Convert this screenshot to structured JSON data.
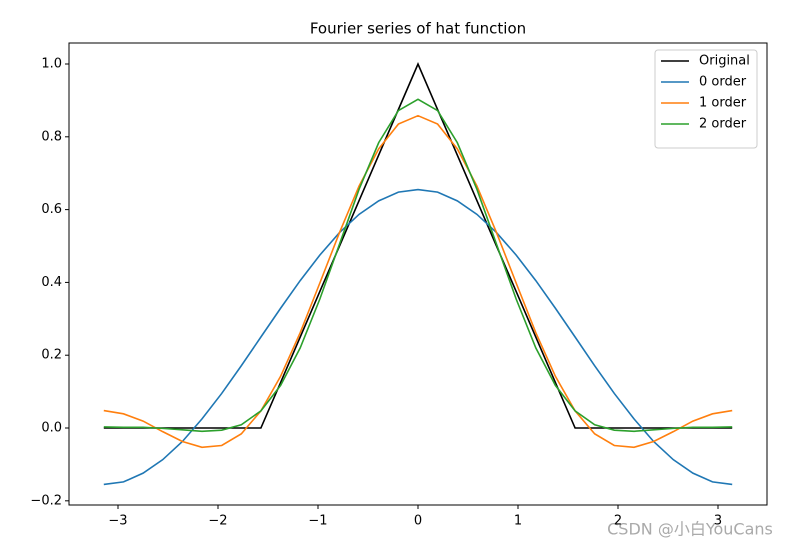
{
  "chart_data": {
    "type": "line",
    "title": "Fourier series of hat function",
    "x": [
      -3.142,
      -2.945,
      -2.749,
      -2.553,
      -2.356,
      -2.16,
      -1.963,
      -1.767,
      -1.571,
      -1.374,
      -1.178,
      -0.982,
      -0.785,
      -0.589,
      -0.393,
      -0.196,
      0,
      0.196,
      0.393,
      0.589,
      0.785,
      0.982,
      1.178,
      1.374,
      1.571,
      1.767,
      1.963,
      2.16,
      2.356,
      2.553,
      2.749,
      2.945,
      3.142
    ],
    "series": [
      {
        "name": "Original",
        "color": "#000000",
        "values": [
          0,
          0,
          0,
          0,
          0,
          0,
          0,
          0,
          0,
          0.125,
          0.25,
          0.375,
          0.5,
          0.625,
          0.75,
          0.875,
          1,
          0.875,
          0.75,
          0.625,
          0.5,
          0.375,
          0.25,
          0.125,
          0,
          0,
          0,
          0,
          0,
          0,
          0,
          0,
          0
        ]
      },
      {
        "name": "0 order",
        "color": "#1f77b4",
        "values": [
          -0.155,
          -0.148,
          -0.124,
          -0.087,
          -0.037,
          0.025,
          0.095,
          0.171,
          0.25,
          0.329,
          0.405,
          0.475,
          0.537,
          0.587,
          0.624,
          0.648,
          0.655,
          0.648,
          0.624,
          0.587,
          0.537,
          0.475,
          0.405,
          0.329,
          0.25,
          0.171,
          0.095,
          0.025,
          -0.037,
          -0.087,
          -0.124,
          -0.148,
          -0.155
        ]
      },
      {
        "name": "1 order",
        "color": "#ff7f0e",
        "values": [
          0.048,
          0.039,
          0.019,
          -0.01,
          -0.037,
          -0.053,
          -0.048,
          -0.016,
          0.047,
          0.142,
          0.262,
          0.398,
          0.537,
          0.665,
          0.767,
          0.835,
          0.858,
          0.835,
          0.767,
          0.665,
          0.537,
          0.398,
          0.262,
          0.142,
          0.047,
          -0.016,
          -0.048,
          -0.053,
          -0.037,
          -0.01,
          0.019,
          0.039,
          0.048
        ]
      },
      {
        "name": "2 order",
        "color": "#2ca02c",
        "values": [
          0.003,
          0.002,
          0.002,
          -0.001,
          -0.005,
          -0.009,
          -0.006,
          0.009,
          0.047,
          0.117,
          0.22,
          0.354,
          0.505,
          0.656,
          0.784,
          0.872,
          0.903,
          0.872,
          0.784,
          0.656,
          0.505,
          0.354,
          0.22,
          0.117,
          0.047,
          0.009,
          -0.006,
          -0.009,
          -0.005,
          -0.001,
          0.002,
          0.002,
          0.003
        ]
      }
    ],
    "xlim": [
      -3.49,
      3.49
    ],
    "ylim": [
      -0.2115,
      1.0577
    ],
    "xticks": [
      {
        "value": -3,
        "label": "−3"
      },
      {
        "value": -2,
        "label": "−2"
      },
      {
        "value": -1,
        "label": "−1"
      },
      0,
      1,
      2,
      3
    ],
    "yticks": [
      {
        "value": -0.2,
        "label": "−0.2"
      },
      {
        "value": 0,
        "label": "0.0"
      },
      {
        "value": 0.2,
        "label": "0.2"
      },
      {
        "value": 0.4,
        "label": "0.4"
      },
      {
        "value": 0.6,
        "label": "0.6"
      },
      {
        "value": 0.8,
        "label": "0.8"
      },
      {
        "value": 1,
        "label": "1.0"
      }
    ],
    "legend": "upper right",
    "watermark": "CSDN @小白YouCans"
  }
}
